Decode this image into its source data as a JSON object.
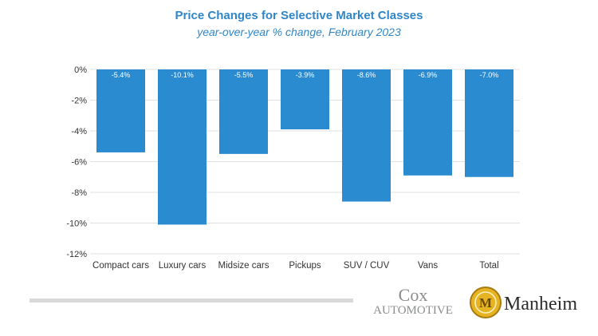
{
  "chart_data": {
    "type": "bar",
    "title": "Price Changes for Selective Market Classes",
    "subtitle": "year-over-year % change, February 2023",
    "categories": [
      "Compact cars",
      "Luxury cars",
      "Midsize cars",
      "Pickups",
      "SUV / CUV",
      "Vans",
      "Total"
    ],
    "values": [
      -5.4,
      -10.1,
      -5.5,
      -3.9,
      -8.6,
      -6.9,
      -7.0
    ],
    "data_labels": [
      "-5.4%",
      "-10.1%",
      "-5.5%",
      "-3.9%",
      "-8.6%",
      "-6.9%",
      "-7.0%"
    ],
    "ylim": [
      -12,
      0
    ],
    "yticks": [
      0,
      -2,
      -4,
      -6,
      -8,
      -10,
      -12
    ],
    "ytick_labels": [
      "0%",
      "-2%",
      "-4%",
      "-6%",
      "-8%",
      "-10%",
      "-12%"
    ],
    "xlabel": "",
    "ylabel": "",
    "grid": true,
    "bar_color": "#2a8bd0"
  },
  "logos": {
    "cox_top": "Cox",
    "cox_bottom": "AUTOMOTIVE",
    "manheim": "Manheim",
    "manheim_emblem": "M"
  },
  "colors": {
    "title": "#2f86c8",
    "grid": "#e0e0e0",
    "axis_text": "#333333",
    "footer_bar": "#d9d9d9"
  }
}
